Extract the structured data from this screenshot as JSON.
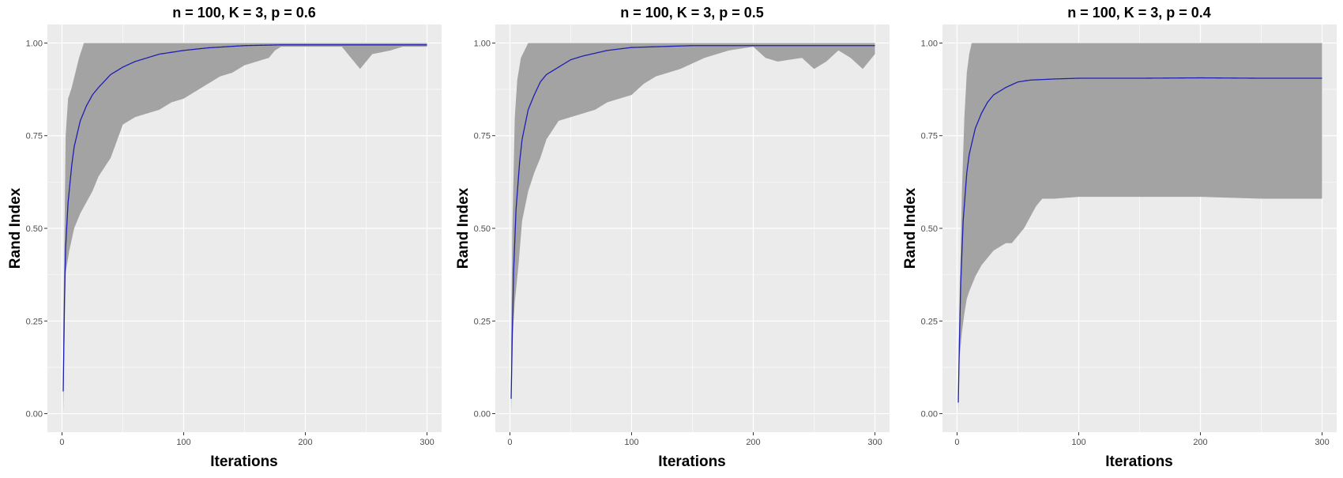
{
  "chart_data": [
    {
      "type": "area",
      "title": "n = 100, K = 3, p = 0.6",
      "xlabel": "Iterations",
      "ylabel": "Rand Index",
      "xlim": [
        -12,
        312
      ],
      "ylim": [
        -0.05,
        1.05
      ],
      "x_ticks": [
        0,
        100,
        200,
        300
      ],
      "y_ticks": [
        0.0,
        0.25,
        0.5,
        0.75,
        1.0
      ],
      "y_tick_labels": [
        "0.00",
        "0.25",
        "0.50",
        "0.75",
        "1.00"
      ],
      "grid": true,
      "series": [
        {
          "role": "band_upper",
          "x": [
            1,
            3,
            5,
            8,
            11,
            14,
            16,
            18,
            20,
            300
          ],
          "values": [
            0.2,
            0.75,
            0.85,
            0.88,
            0.92,
            0.96,
            0.98,
            1.0,
            1.0,
            1.0
          ]
        },
        {
          "role": "band_lower",
          "x": [
            1,
            3,
            6,
            10,
            15,
            20,
            25,
            30,
            40,
            50,
            60,
            70,
            80,
            90,
            100,
            110,
            120,
            130,
            140,
            150,
            160,
            170,
            175,
            180,
            200,
            230,
            240,
            245,
            255,
            270,
            280,
            300
          ],
          "values": [
            0.0,
            0.38,
            0.44,
            0.5,
            0.54,
            0.57,
            0.6,
            0.64,
            0.69,
            0.78,
            0.8,
            0.81,
            0.82,
            0.84,
            0.85,
            0.87,
            0.89,
            0.91,
            0.92,
            0.94,
            0.95,
            0.96,
            0.98,
            0.99,
            0.99,
            0.99,
            0.95,
            0.93,
            0.97,
            0.98,
            0.99,
            0.99
          ]
        },
        {
          "role": "mean",
          "x": [
            1,
            2,
            3,
            5,
            8,
            10,
            15,
            20,
            25,
            30,
            40,
            50,
            60,
            80,
            100,
            120,
            150,
            180,
            200,
            250,
            300
          ],
          "values": [
            0.06,
            0.3,
            0.45,
            0.57,
            0.67,
            0.72,
            0.79,
            0.83,
            0.86,
            0.88,
            0.915,
            0.935,
            0.95,
            0.97,
            0.98,
            0.987,
            0.993,
            0.995,
            0.995,
            0.995,
            0.995
          ]
        }
      ]
    },
    {
      "type": "area",
      "title": "n = 100, K = 3, p = 0.5",
      "xlabel": "Iterations",
      "ylabel": "Rand Index",
      "xlim": [
        -12,
        312
      ],
      "ylim": [
        -0.05,
        1.05
      ],
      "x_ticks": [
        0,
        100,
        200,
        300
      ],
      "y_ticks": [
        0.0,
        0.25,
        0.5,
        0.75,
        1.0
      ],
      "y_tick_labels": [
        "0.00",
        "0.25",
        "0.50",
        "0.75",
        "1.00"
      ],
      "grid": true,
      "series": [
        {
          "role": "band_upper",
          "x": [
            1,
            2,
            4,
            6,
            9,
            12,
            15,
            300
          ],
          "values": [
            0.2,
            0.5,
            0.8,
            0.9,
            0.96,
            0.98,
            1.0,
            1.0
          ]
        },
        {
          "role": "band_lower",
          "x": [
            1,
            2,
            4,
            7,
            10,
            15,
            20,
            25,
            30,
            40,
            50,
            60,
            70,
            80,
            90,
            100,
            110,
            120,
            140,
            160,
            180,
            200,
            210,
            220,
            240,
            250,
            260,
            270,
            280,
            290,
            300
          ],
          "values": [
            0.0,
            0.2,
            0.3,
            0.4,
            0.52,
            0.6,
            0.65,
            0.69,
            0.74,
            0.79,
            0.8,
            0.81,
            0.82,
            0.84,
            0.85,
            0.86,
            0.89,
            0.91,
            0.93,
            0.96,
            0.98,
            0.99,
            0.96,
            0.95,
            0.96,
            0.93,
            0.95,
            0.98,
            0.96,
            0.93,
            0.97
          ]
        },
        {
          "role": "mean",
          "x": [
            1,
            2,
            3,
            5,
            8,
            10,
            15,
            20,
            25,
            30,
            40,
            50,
            60,
            80,
            100,
            120,
            150,
            200,
            250,
            300
          ],
          "values": [
            0.04,
            0.22,
            0.38,
            0.55,
            0.68,
            0.74,
            0.82,
            0.86,
            0.895,
            0.915,
            0.935,
            0.955,
            0.965,
            0.98,
            0.988,
            0.99,
            0.993,
            0.993,
            0.993,
            0.993
          ]
        }
      ]
    },
    {
      "type": "area",
      "title": "n = 100, K = 3, p = 0.4",
      "xlabel": "Iterations",
      "ylabel": "Rand Index",
      "xlim": [
        -12,
        312
      ],
      "ylim": [
        -0.05,
        1.05
      ],
      "x_ticks": [
        0,
        100,
        200,
        300
      ],
      "y_ticks": [
        0.0,
        0.25,
        0.5,
        0.75,
        1.0
      ],
      "y_tick_labels": [
        "0.00",
        "0.25",
        "0.50",
        "0.75",
        "1.00"
      ],
      "grid": true,
      "series": [
        {
          "role": "band_upper",
          "x": [
            1,
            2,
            4,
            6,
            8,
            10,
            12,
            300
          ],
          "values": [
            0.1,
            0.3,
            0.6,
            0.8,
            0.92,
            0.97,
            1.0,
            1.0
          ]
        },
        {
          "role": "band_lower",
          "x": [
            1,
            2,
            4,
            6,
            8,
            10,
            15,
            20,
            25,
            30,
            35,
            40,
            45,
            50,
            55,
            60,
            65,
            70,
            80,
            100,
            150,
            200,
            250,
            300
          ],
          "values": [
            0.0,
            0.15,
            0.22,
            0.27,
            0.31,
            0.33,
            0.37,
            0.4,
            0.42,
            0.44,
            0.45,
            0.46,
            0.46,
            0.48,
            0.5,
            0.53,
            0.56,
            0.58,
            0.58,
            0.585,
            0.585,
            0.585,
            0.58,
            0.58
          ]
        },
        {
          "role": "mean",
          "x": [
            1,
            2,
            3,
            5,
            8,
            10,
            15,
            20,
            25,
            30,
            40,
            50,
            60,
            80,
            100,
            150,
            200,
            250,
            300
          ],
          "values": [
            0.03,
            0.2,
            0.35,
            0.52,
            0.65,
            0.7,
            0.77,
            0.81,
            0.84,
            0.86,
            0.88,
            0.895,
            0.9,
            0.903,
            0.905,
            0.905,
            0.906,
            0.905,
            0.905
          ]
        }
      ]
    }
  ]
}
